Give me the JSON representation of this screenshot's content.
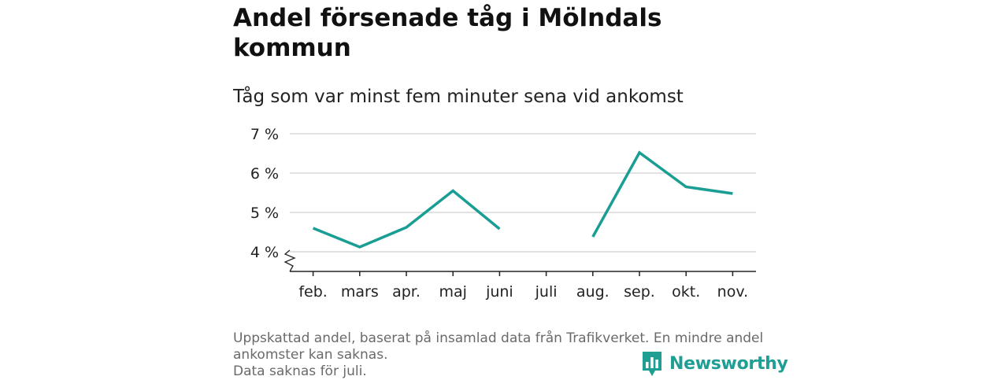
{
  "title": "Andel försenade tåg i Mölndals kommun",
  "subtitle": "Tåg som var minst fem minuter sena vid ankomst",
  "note_lines": [
    "Uppskattad andel, baserat på insamlad data från Trafikverket. En mindre andel",
    "ankomster kan saknas.",
    "Data saknas för juli."
  ],
  "logo": {
    "text": "Newsworthy",
    "icon": "bar-chart-speech-bubble-icon"
  },
  "colors": {
    "line": "#1a9e94",
    "grid": "#d9d9d9",
    "axis": "#222222",
    "brand": "#1f9e93"
  },
  "chart_data": {
    "type": "line",
    "title": "Andel försenade tåg i Mölndals kommun",
    "subtitle": "Tåg som var minst fem minuter sena vid ankomst",
    "categories": [
      "feb.",
      "mars",
      "apr.",
      "maj",
      "juni",
      "juli",
      "aug.",
      "sep.",
      "okt.",
      "nov."
    ],
    "series": [
      {
        "values": [
          4.6,
          4.12,
          4.62,
          5.55,
          4.58,
          null,
          4.38,
          6.52,
          5.65,
          5.48
        ]
      }
    ],
    "yticks": [
      4,
      5,
      6,
      7
    ],
    "ytick_labels": [
      "4 %",
      "5 %",
      "6 %",
      "7 %"
    ],
    "ylim": [
      3.5,
      7
    ],
    "y_axis_break": true,
    "grid": "horizontal",
    "legend": "none"
  }
}
